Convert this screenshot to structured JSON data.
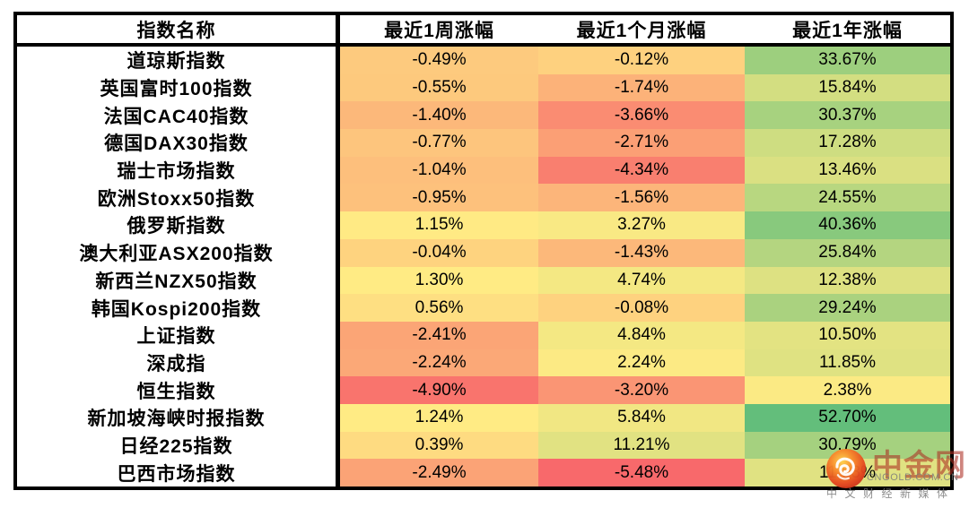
{
  "chart_data": {
    "type": "heatmap",
    "description": "全球主要股票指数涨幅热力表",
    "columns": [
      "指数名称",
      "最近1周涨幅",
      "最近1个月涨幅",
      "最近1年涨幅"
    ],
    "value_format": "two_decimals_percent",
    "rows": [
      {
        "name": "道琼斯指数",
        "week": -0.49,
        "month": -0.12,
        "year": 33.67
      },
      {
        "name": "英国富时100指数",
        "week": -0.55,
        "month": -1.74,
        "year": 15.84
      },
      {
        "name": "法国CAC40指数",
        "week": -1.4,
        "month": -3.66,
        "year": 30.37
      },
      {
        "name": "德国DAX30指数",
        "week": -0.77,
        "month": -2.71,
        "year": 17.28
      },
      {
        "name": "瑞士市场指数",
        "week": -1.04,
        "month": -4.34,
        "year": 13.46
      },
      {
        "name": "欧洲Stoxx50指数",
        "week": -0.95,
        "month": -1.56,
        "year": 24.55
      },
      {
        "name": "俄罗斯指数",
        "week": 1.15,
        "month": 3.27,
        "year": 40.36
      },
      {
        "name": "澳大利亚ASX200指数",
        "week": -0.04,
        "month": -1.43,
        "year": 25.84
      },
      {
        "name": "新西兰NZX50指数",
        "week": 1.3,
        "month": 4.74,
        "year": 12.38
      },
      {
        "name": "韩国Kospi200指数",
        "week": 0.56,
        "month": -0.08,
        "year": 29.24
      },
      {
        "name": "上证指数",
        "week": -2.41,
        "month": 4.84,
        "year": 10.5
      },
      {
        "name": "深成指",
        "week": -2.24,
        "month": 2.24,
        "year": 11.85
      },
      {
        "name": "恒生指数",
        "week": -4.9,
        "month": -3.2,
        "year": 2.38
      },
      {
        "name": "新加坡海峡时报指数",
        "week": 1.24,
        "month": 5.84,
        "year": 52.7
      },
      {
        "name": "日经225指数",
        "week": 0.39,
        "month": 11.21,
        "year": 30.79
      },
      {
        "name": "巴西市场指数",
        "week": -2.49,
        "month": -5.48,
        "year": 11.53
      }
    ],
    "color_scale": {
      "min_value": -5.48,
      "mid_value": 1.195,
      "max_value": 52.7,
      "min_color": "#F8696B",
      "mid_color": "#FFEB84",
      "max_color": "#63BE7B"
    },
    "border_color": "#000000",
    "header_background": "#FFFFFF",
    "text_color": "#000000"
  },
  "watermark": {
    "brand": "中金网",
    "url": "CNGOLD.COM.CN",
    "tagline": "中文财经新媒体",
    "brand_color": "rgba(172,44,34,0.58)",
    "gray_color": "rgba(122,122,122,0.85)",
    "logo_colors": {
      "center": "#FFD24E",
      "mid": "#F98A2B",
      "edge": "#D7331F",
      "swirl": "#FFFFFF"
    }
  }
}
